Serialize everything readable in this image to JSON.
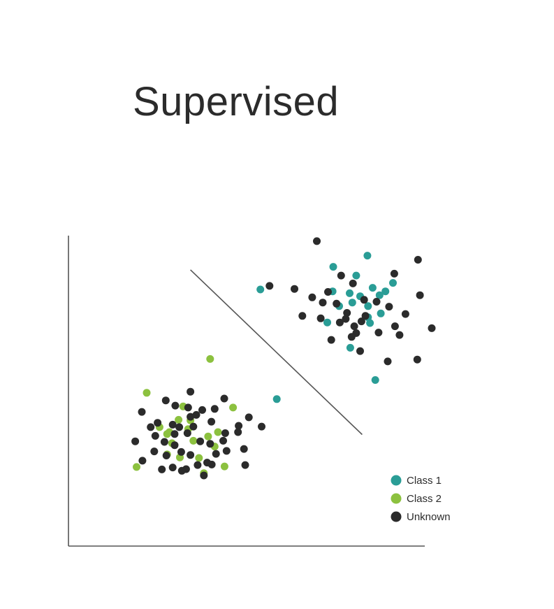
{
  "title": "Supervised",
  "colors": {
    "class1": "#2a9d96",
    "class2": "#8cc13f",
    "unknown": "#2b2b2b",
    "axis": "#555555"
  },
  "legend": [
    {
      "label": "Class 1",
      "color": "#2a9d96",
      "key": "class1"
    },
    {
      "label": "Class 2",
      "color": "#8cc13f",
      "key": "class2"
    },
    {
      "label": "Unknown",
      "color": "#2b2b2b",
      "key": "unknown"
    }
  ],
  "chart_data": {
    "type": "scatter",
    "xlim": [
      0,
      100
    ],
    "ylim": [
      0,
      100
    ],
    "grid": false,
    "legend_position": "bottom-right",
    "decision_boundary": {
      "from": [
        26.5,
        89.0
      ],
      "to": [
        78.8,
        28.6
      ]
    },
    "series": [
      {
        "name": "Class 1",
        "key": "class1",
        "points": [
          [
            80.4,
            94.2
          ],
          [
            70.0,
            90.1
          ],
          [
            77.0,
            86.9
          ],
          [
            88.2,
            84.2
          ],
          [
            69.8,
            81.1
          ],
          [
            47.8,
            81.8
          ],
          [
            75.0,
            80.4
          ],
          [
            82.0,
            82.4
          ],
          [
            85.9,
            81.1
          ],
          [
            78.2,
            79.3
          ],
          [
            84.1,
            79.7
          ],
          [
            71.8,
            75.7
          ],
          [
            80.6,
            75.7
          ],
          [
            75.8,
            77.0
          ],
          [
            68.2,
            69.7
          ],
          [
            84.5,
            73.0
          ],
          [
            80.6,
            71.6
          ],
          [
            81.2,
            69.5
          ],
          [
            75.2,
            60.4
          ],
          [
            82.8,
            48.6
          ],
          [
            52.8,
            41.6
          ]
        ]
      },
      {
        "name": "Class 2",
        "key": "class2",
        "points": [
          [
            32.5,
            56.3
          ],
          [
            13.2,
            43.9
          ],
          [
            24.3,
            38.9
          ],
          [
            39.5,
            38.5
          ],
          [
            22.9,
            34.0
          ],
          [
            26.5,
            33.8
          ],
          [
            17.1,
            31.3
          ],
          [
            25.8,
            30.6
          ],
          [
            19.4,
            28.8
          ],
          [
            34.9,
            29.5
          ],
          [
            31.9,
            27.9
          ],
          [
            27.4,
            26.3
          ],
          [
            20.9,
            25.4
          ],
          [
            33.9,
            24.2
          ],
          [
            19.4,
            21.3
          ],
          [
            23.3,
            20.2
          ],
          [
            29.1,
            20.0
          ],
          [
            10.1,
            16.7
          ],
          [
            36.9,
            16.9
          ],
          [
            30.6,
            14.4
          ],
          [
            20.1,
            29.5
          ]
        ]
      },
      {
        "name": "Unknown",
        "key": "unknown",
        "points": [
          [
            65.0,
            99.5
          ],
          [
            95.8,
            92.7
          ],
          [
            72.4,
            86.9
          ],
          [
            88.6,
            87.6
          ],
          [
            76.0,
            84.0
          ],
          [
            50.6,
            83.1
          ],
          [
            58.2,
            82.0
          ],
          [
            68.4,
            80.9
          ],
          [
            96.4,
            79.7
          ],
          [
            63.6,
            78.9
          ],
          [
            66.8,
            77.0
          ],
          [
            71.0,
            76.6
          ],
          [
            79.4,
            78.0
          ],
          [
            83.2,
            77.3
          ],
          [
            87.0,
            75.5
          ],
          [
            74.2,
            73.2
          ],
          [
            92.0,
            72.8
          ],
          [
            60.6,
            72.1
          ],
          [
            66.2,
            71.2
          ],
          [
            72.0,
            69.7
          ],
          [
            76.4,
            68.3
          ],
          [
            78.6,
            70.1
          ],
          [
            79.8,
            72.1
          ],
          [
            73.8,
            71.0
          ],
          [
            88.8,
            68.3
          ],
          [
            100.0,
            67.6
          ],
          [
            77.0,
            65.8
          ],
          [
            83.8,
            66.0
          ],
          [
            90.2,
            65.1
          ],
          [
            69.4,
            63.3
          ],
          [
            75.6,
            64.4
          ],
          [
            78.2,
            59.2
          ],
          [
            95.6,
            56.1
          ],
          [
            86.6,
            55.4
          ],
          [
            26.5,
            44.3
          ],
          [
            19.0,
            41.1
          ],
          [
            36.8,
            41.8
          ],
          [
            11.7,
            36.9
          ],
          [
            21.9,
            39.2
          ],
          [
            33.9,
            38.0
          ],
          [
            30.1,
            37.6
          ],
          [
            25.8,
            38.5
          ],
          [
            26.5,
            35.1
          ],
          [
            28.3,
            35.8
          ],
          [
            44.3,
            34.9
          ],
          [
            16.5,
            32.9
          ],
          [
            21.1,
            32.2
          ],
          [
            32.9,
            33.3
          ],
          [
            14.4,
            31.3
          ],
          [
            23.1,
            31.3
          ],
          [
            27.4,
            31.5
          ],
          [
            41.2,
            31.8
          ],
          [
            37.1,
            29.1
          ],
          [
            21.7,
            28.8
          ],
          [
            25.6,
            29.1
          ],
          [
            15.8,
            28.1
          ],
          [
            41.0,
            29.5
          ],
          [
            48.2,
            31.5
          ],
          [
            36.5,
            26.3
          ],
          [
            32.5,
            25.2
          ],
          [
            9.7,
            26.1
          ],
          [
            18.6,
            25.9
          ],
          [
            21.7,
            24.7
          ],
          [
            29.5,
            26.1
          ],
          [
            42.8,
            23.3
          ],
          [
            15.5,
            22.4
          ],
          [
            23.7,
            22.2
          ],
          [
            34.3,
            21.5
          ],
          [
            26.5,
            21.1
          ],
          [
            11.9,
            19.0
          ],
          [
            19.2,
            20.9
          ],
          [
            31.6,
            18.3
          ],
          [
            37.5,
            22.6
          ],
          [
            28.7,
            17.4
          ],
          [
            43.2,
            17.4
          ],
          [
            25.2,
            15.9
          ],
          [
            17.8,
            15.8
          ],
          [
            21.1,
            16.5
          ],
          [
            23.9,
            15.3
          ],
          [
            30.6,
            13.6
          ],
          [
            33.0,
            17.6
          ]
        ]
      }
    ]
  }
}
